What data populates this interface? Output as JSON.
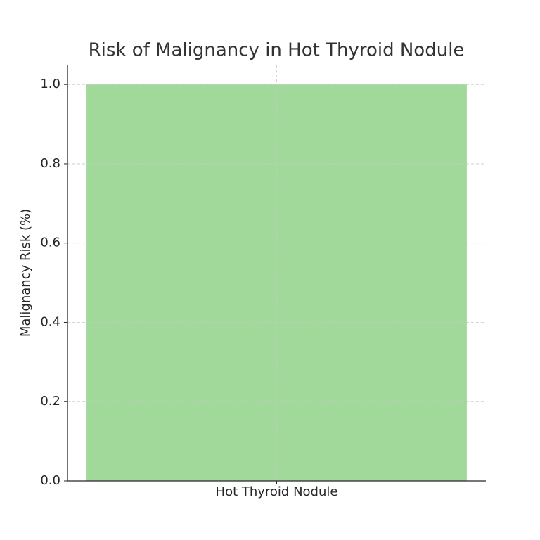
{
  "chart_data": {
    "type": "bar",
    "title": "Risk of Malignancy in Hot Thyroid Nodule",
    "ylabel": "Malignancy Risk (%)",
    "categories": [
      "Hot Thyroid Nodule"
    ],
    "values": [
      1.0
    ],
    "color": "#a1d99b",
    "ylim": [
      0,
      1.05
    ],
    "yticks": [
      {
        "value": 0,
        "label": "0.0"
      },
      0.2,
      0.4,
      0.6,
      0.8,
      {
        "value": 1,
        "label": "1.0"
      }
    ],
    "grid": true
  }
}
